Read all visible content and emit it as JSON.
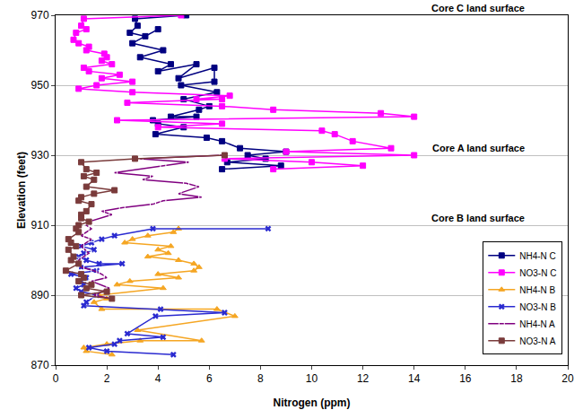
{
  "chart_data": {
    "type": "line",
    "x_label": "Nitrogen (ppm)",
    "y_label": "Elevation (feet)",
    "xlim": [
      0,
      20
    ],
    "xticks": [
      0,
      2,
      4,
      6,
      8,
      10,
      12,
      14,
      16,
      18,
      20
    ],
    "ylim": [
      870,
      970
    ],
    "yticks": [
      870,
      890,
      910,
      930,
      950,
      970
    ],
    "grid": "y",
    "legend": "lower right",
    "annotations": [
      {
        "text": "Core C land surface",
        "x": 16.5,
        "y": 970
      },
      {
        "text": "Core A land surface",
        "x": 16.5,
        "y": 930
      },
      {
        "text": "Core B land surface",
        "x": 16.5,
        "y": 910
      }
    ],
    "series": [
      {
        "name": "NH4-N C",
        "color": "#000080",
        "marker": "square",
        "x": [
          5.1,
          3.1,
          3.2,
          2.9,
          3.5,
          4.0,
          3.0,
          4.2,
          3.3,
          4.5,
          4.0,
          5.5,
          4.8,
          6.2,
          6.2,
          4.9,
          6.3,
          5.0,
          6.0,
          5.6,
          4.5,
          5.5,
          3.8,
          4.0,
          5.0,
          3.9,
          5.9,
          6.5,
          7.2,
          9.0,
          7.5,
          8.2,
          6.7,
          8.8,
          6.5
        ],
        "y": [
          970,
          969,
          967,
          965,
          964,
          966,
          962,
          960,
          958,
          956,
          954,
          956,
          952,
          955,
          951,
          950,
          948,
          946,
          944,
          943,
          941,
          941,
          940,
          939,
          938,
          936,
          935,
          934,
          932,
          931,
          930,
          929,
          928,
          927,
          926
        ]
      },
      {
        "name": "NO3-N C",
        "color": "#ff00ff",
        "marker": "square",
        "x": [
          4.9,
          1.1,
          1.0,
          1.2,
          0.8,
          0.7,
          0.9,
          1.3,
          1.2,
          1.9,
          2.0,
          1.8,
          2.2,
          1.1,
          1.3,
          2.5,
          1.8,
          3.0,
          1.6,
          0.9,
          3.0,
          6.8,
          5.5,
          6.5,
          2.8,
          6.5,
          8.5,
          12.7,
          14.0,
          2.4,
          6.5,
          4.0,
          10.4,
          10.9,
          11.6,
          13.1,
          9.0,
          14.0,
          6.6,
          10.0,
          12.0,
          8.5
        ],
        "y": [
          970,
          969,
          967,
          966,
          965,
          963,
          962,
          961,
          960,
          959,
          958,
          957,
          956,
          955,
          954,
          953,
          952,
          951,
          950,
          949,
          948,
          947,
          946,
          946,
          945,
          944,
          943,
          942,
          941,
          940,
          939,
          938,
          937,
          936,
          934,
          932,
          931,
          930,
          929,
          928,
          927,
          926
        ]
      },
      {
        "name": "NH4-N B",
        "color": "#f5a623",
        "marker": "triangle-up",
        "x": [
          4.8,
          4.6,
          3.6,
          3.0,
          2.7,
          4.5,
          4.0,
          4.4,
          3.6,
          4.8,
          5.4,
          5.6,
          5.4,
          4.0,
          4.8,
          2.9,
          2.4,
          4.2,
          1.7,
          2.0,
          1.5,
          1.8,
          6.3,
          7.0,
          3.2,
          5.7,
          3.3,
          2.0,
          1.1,
          1.2,
          2.2
        ],
        "y": [
          909,
          908,
          907,
          906,
          905,
          904,
          903,
          902,
          901,
          900,
          899,
          898,
          897,
          896,
          895,
          894,
          893,
          892,
          890,
          889,
          888,
          886,
          886,
          884,
          880,
          877,
          877,
          876,
          875,
          874,
          873
        ]
      },
      {
        "name": "NO3-N B",
        "color": "#2a2ad0",
        "marker": "x",
        "x": [
          8.3,
          3.8,
          2.3,
          1.8,
          1.4,
          1.0,
          1.5,
          1.1,
          0.9,
          1.2,
          1.7,
          2.6,
          1.0,
          1.6,
          0.6,
          1.2,
          1.0,
          1.1,
          0.8,
          1.0,
          1.6,
          1.2,
          1.1,
          4.1,
          6.6,
          3.9,
          2.8,
          4.2,
          2.5,
          2.3,
          1.3,
          2.0,
          4.6
        ],
        "y": [
          909,
          909,
          907,
          906,
          905,
          904,
          903,
          902,
          901,
          900,
          899,
          899,
          898,
          897,
          896,
          895,
          894,
          893,
          892,
          891,
          890,
          888,
          887,
          886,
          885,
          884,
          879,
          878,
          877,
          876,
          875,
          874,
          873
        ]
      },
      {
        "name": "NH4-N A",
        "color": "#800080",
        "marker": "square-open",
        "x": [
          6.5,
          3.3,
          5.2,
          4.2,
          2.3,
          3.8,
          3.4,
          5.1,
          5.6,
          4.8,
          5.7,
          4.2,
          3.8,
          2.6,
          1.8,
          2.2,
          1.3,
          1.2,
          1.4,
          1.0,
          1.4,
          1.0,
          1.3,
          0.9,
          1.0,
          1.5,
          1.8,
          2.0,
          1.4,
          2.1,
          1.5,
          2.2
        ],
        "y": [
          930,
          929,
          928,
          927,
          925,
          924,
          923,
          922,
          921,
          919,
          918,
          917,
          916,
          915,
          914,
          913,
          911,
          910,
          909,
          907,
          906,
          904,
          902,
          900,
          898,
          897,
          896,
          895,
          894,
          892,
          890,
          889
        ]
      },
      {
        "name": "NO3-N A",
        "color": "#7a3b3b",
        "marker": "square",
        "x": [
          6.6,
          3.1,
          1.0,
          1.2,
          1.6,
          1.1,
          1.5,
          1.2,
          2.3,
          1.5,
          1.0,
          0.9,
          1.4,
          1.2,
          1.0,
          1.0,
          1.3,
          0.9,
          0.8,
          0.9,
          0.5,
          0.6,
          0.8,
          0.5,
          0.7,
          0.6,
          0.9,
          0.4,
          1.0,
          1.1,
          0.9,
          1.4,
          1.2,
          2.0,
          1.0,
          2.2
        ],
        "y": [
          930,
          929,
          928,
          926,
          925,
          924,
          923,
          921,
          920,
          919,
          918,
          917,
          916,
          914,
          913,
          912,
          911,
          910,
          909,
          908,
          906,
          905,
          904,
          903,
          901,
          900,
          899,
          897,
          896,
          895,
          894,
          893,
          892,
          891,
          890,
          889
        ]
      }
    ]
  }
}
